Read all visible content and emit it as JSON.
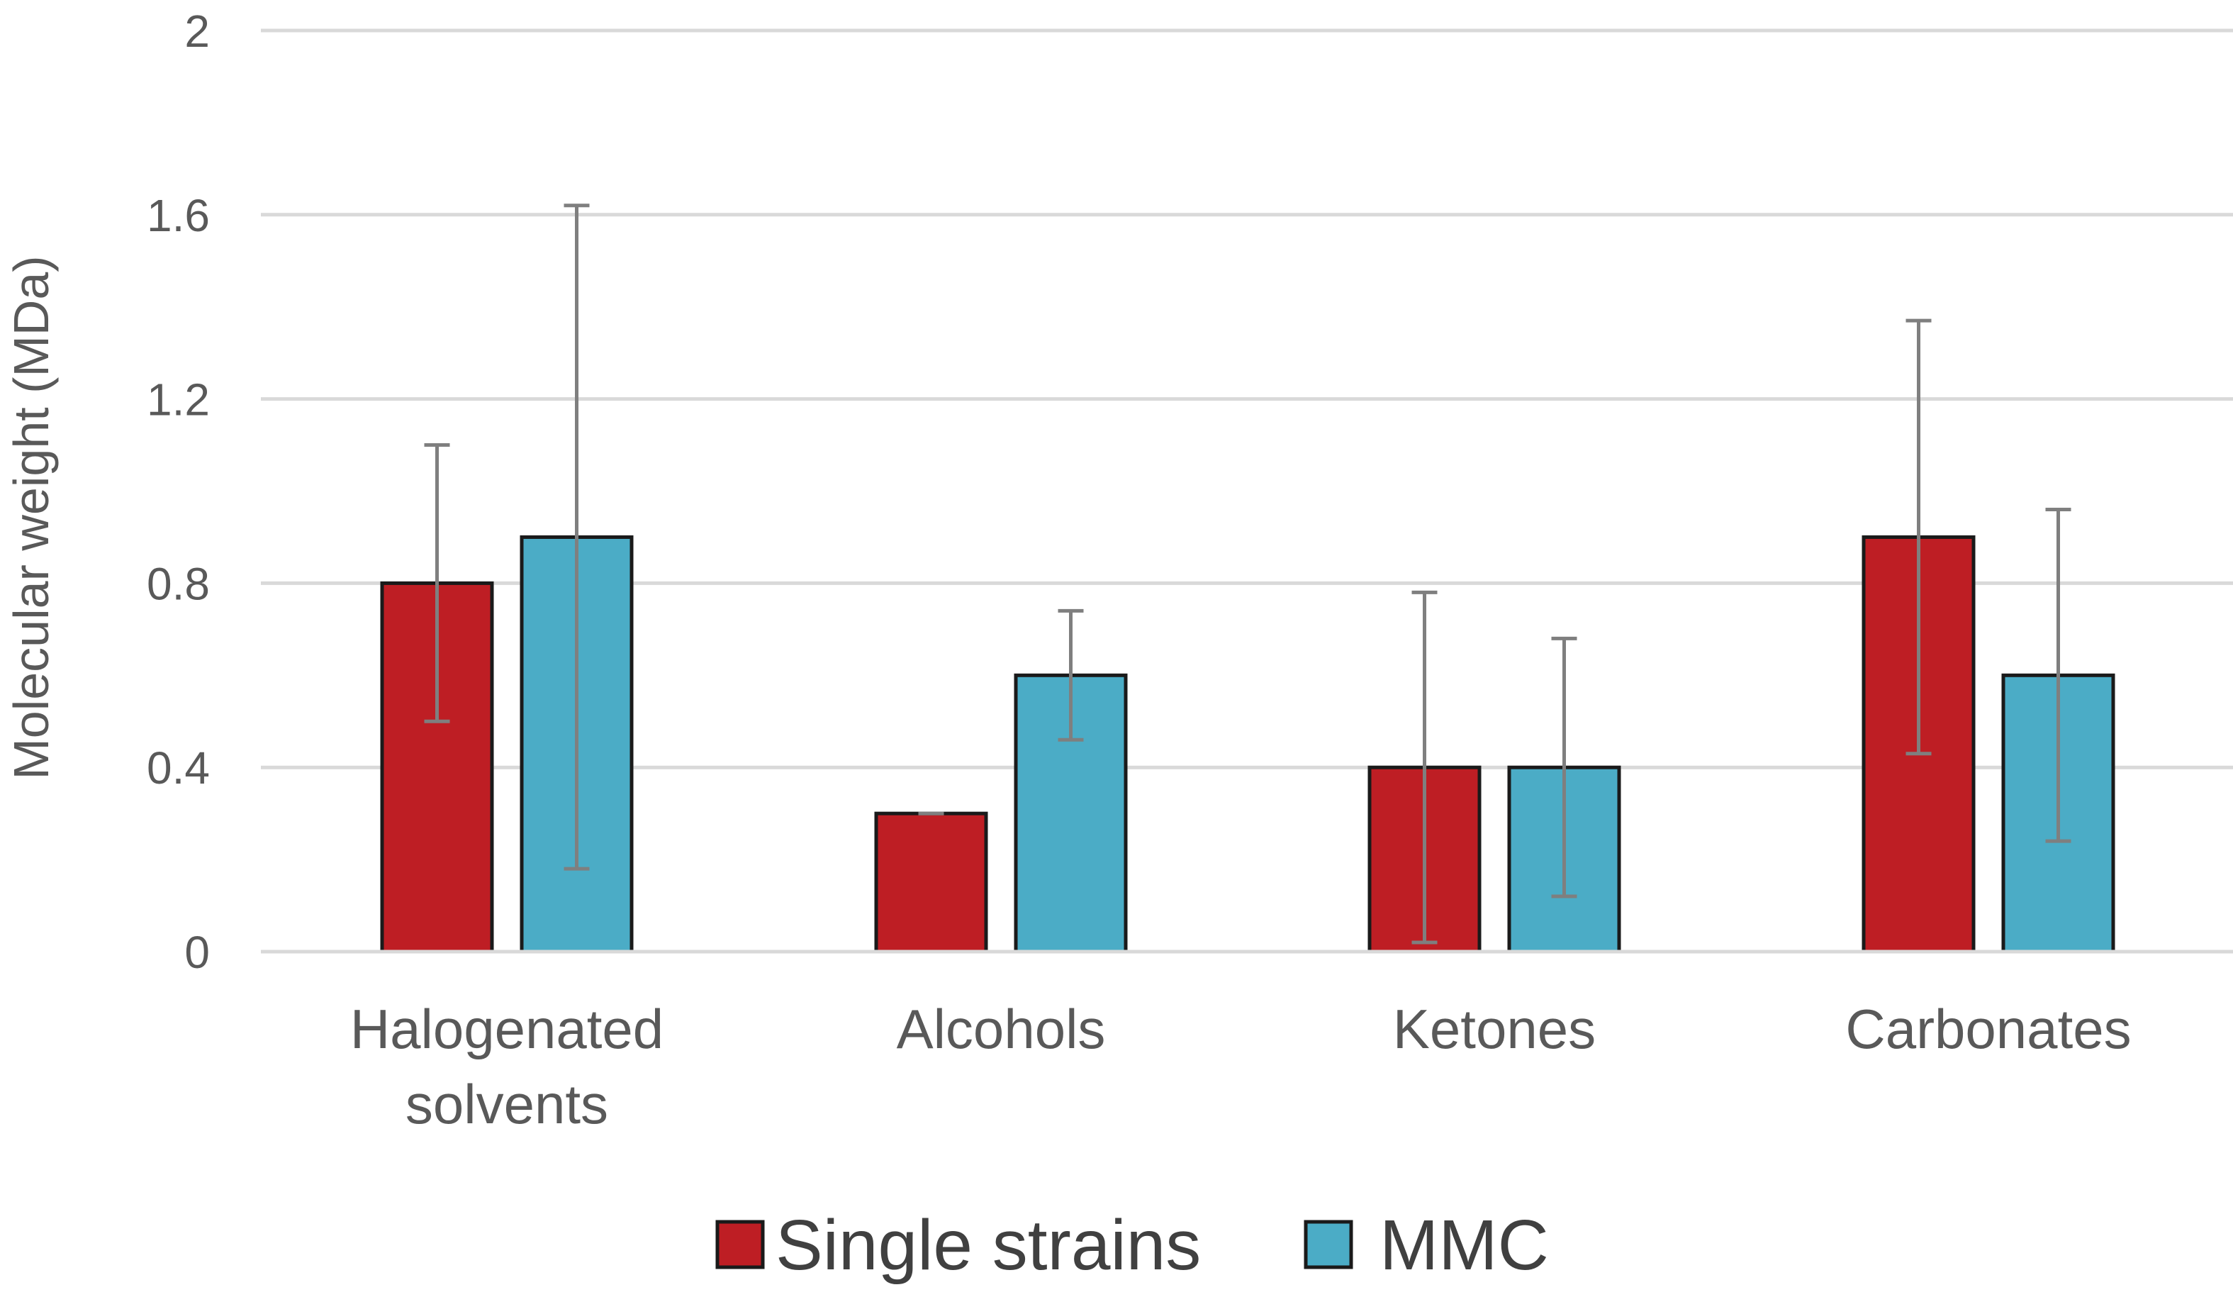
{
  "chart_data": {
    "type": "bar",
    "title": "",
    "xlabel": "",
    "ylabel": "Molecular weight (MDa)",
    "ylim": [
      0,
      2
    ],
    "yticks": [
      0,
      0.4,
      0.8,
      1.2,
      1.6,
      2
    ],
    "ytick_labels": [
      "0",
      "0.4",
      "0.8",
      "1.2",
      "1.6",
      "2"
    ],
    "grid": true,
    "legend_position": "bottom",
    "categories": [
      [
        "Halogenated",
        "solvents"
      ],
      [
        "Alcohols"
      ],
      [
        "Ketones"
      ],
      [
        "Carbonates"
      ]
    ],
    "series": [
      {
        "name": "Single strains",
        "color": "#be1e24",
        "values": [
          0.8,
          0.3,
          0.4,
          0.9
        ],
        "errors": [
          0.3,
          0.0,
          0.38,
          0.47
        ]
      },
      {
        "name": "MMC",
        "color": "#4bacc6",
        "values": [
          0.9,
          0.6,
          0.4,
          0.6
        ],
        "errors": [
          0.72,
          0.14,
          0.28,
          0.36
        ]
      }
    ],
    "colors": {
      "gridline": "#d9d9d9",
      "errorbar": "#7f7f7f",
      "bar_outline": "#1a1a1a"
    }
  }
}
